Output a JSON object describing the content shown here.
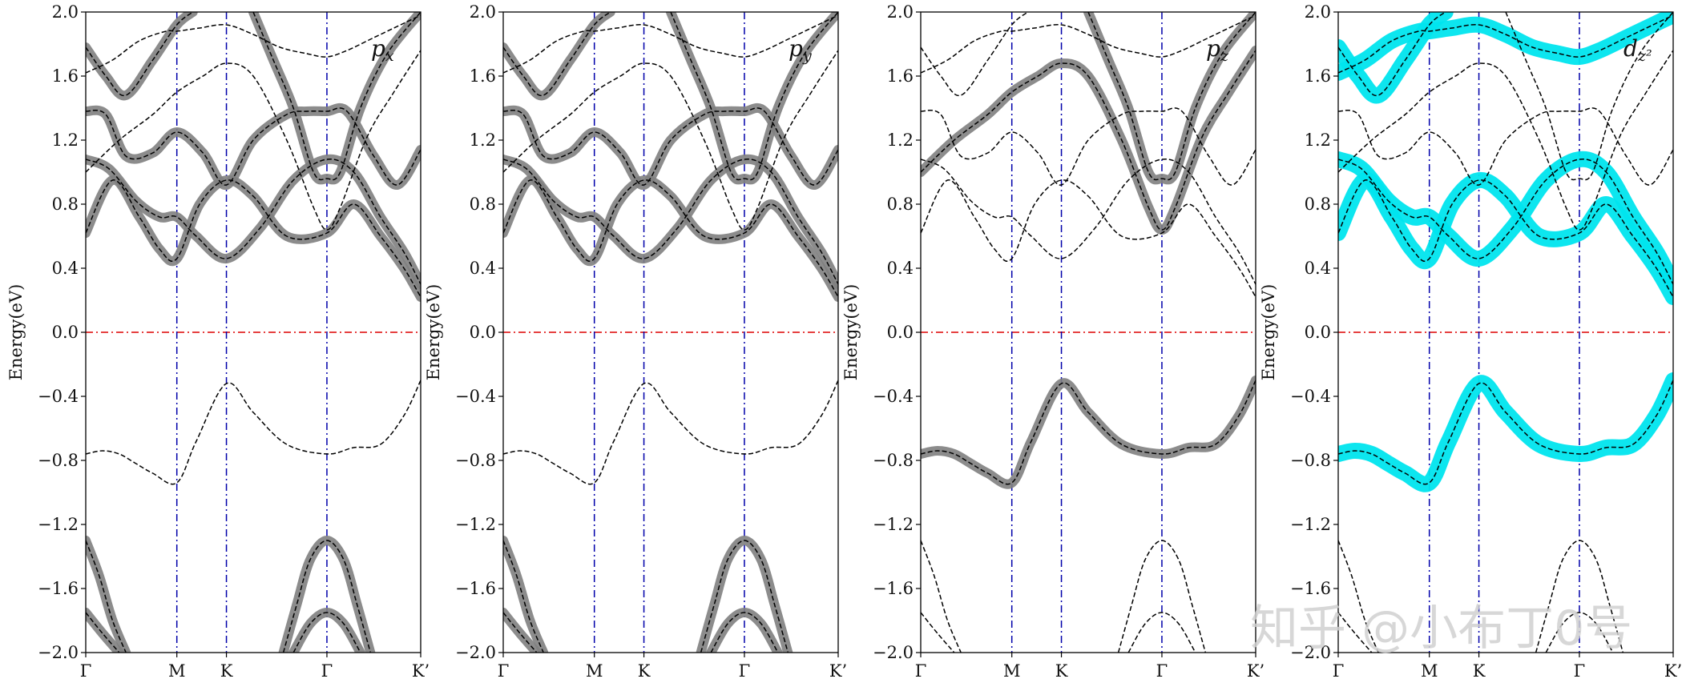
{
  "chart_data": {
    "type": "line",
    "ylabel": "Energy(eV)",
    "ylim": [
      -2.0,
      2.0
    ],
    "yticks": [
      "2.0",
      "1.6",
      "1.2",
      "0.8",
      "0.4",
      "0.0",
      "−0.4",
      "−0.8",
      "−1.2",
      "−1.6",
      "−2.0"
    ],
    "ytick_values": [
      2.0,
      1.6,
      1.2,
      0.8,
      0.4,
      0.0,
      -0.4,
      -0.8,
      -1.2,
      -1.6,
      -2.0
    ],
    "kpath_labels": [
      "Γ",
      "M",
      "K",
      "Γ",
      "K’"
    ],
    "kpath_positions": [
      0.0,
      0.272,
      0.42,
      0.72,
      1.0
    ],
    "fermi_level": 0.0,
    "colors": {
      "band": "#000000",
      "weight_p": "#808080",
      "weight_d": "#00e5ee",
      "fermi": "#dd0000",
      "kline": "#0000aa"
    },
    "bands": [
      {
        "x": [
          0,
          0.05,
          0.1,
          0.15,
          0.2,
          0.272,
          0.33,
          0.42,
          0.5,
          0.6,
          0.72,
          0.8,
          0.88,
          0.95,
          1.0
        ],
        "y": [
          -0.76,
          -0.74,
          -0.76,
          -0.82,
          -0.88,
          -0.94,
          -0.68,
          -0.32,
          -0.5,
          -0.7,
          -0.76,
          -0.72,
          -0.7,
          -0.52,
          -0.3
        ]
      },
      {
        "x": [
          0,
          0.08,
          0.16,
          0.22,
          0.272,
          0.34,
          0.42,
          0.5,
          0.6,
          0.72,
          0.8,
          0.88,
          0.95,
          1.0
        ],
        "y": [
          0.62,
          0.95,
          0.72,
          0.52,
          0.46,
          0.8,
          0.95,
          0.85,
          0.6,
          0.62,
          0.8,
          0.6,
          0.4,
          0.22
        ]
      },
      {
        "x": [
          0,
          0.07,
          0.15,
          0.22,
          0.272,
          0.33,
          0.42,
          0.52,
          0.62,
          0.72,
          0.8,
          0.88,
          0.95,
          1.0
        ],
        "y": [
          1.08,
          1.02,
          0.82,
          0.72,
          0.72,
          0.6,
          0.46,
          0.65,
          0.95,
          1.08,
          1.0,
          0.72,
          0.5,
          0.3
        ]
      },
      {
        "x": [
          0,
          0.06,
          0.12,
          0.2,
          0.272,
          0.35,
          0.42,
          0.5,
          0.6,
          0.66,
          0.72,
          0.78,
          0.86,
          0.93,
          1.0
        ],
        "y": [
          1.38,
          1.36,
          1.1,
          1.12,
          1.25,
          1.12,
          0.92,
          1.2,
          1.36,
          1.38,
          1.38,
          1.38,
          1.1,
          0.92,
          1.14
        ]
      },
      {
        "x": [
          0,
          0.1,
          0.2,
          0.272,
          0.35,
          0.42,
          0.5,
          0.6,
          0.68,
          0.72,
          0.76,
          0.84,
          0.92,
          1.0
        ],
        "y": [
          1.0,
          1.2,
          1.36,
          1.5,
          1.6,
          1.68,
          1.6,
          1.2,
          0.78,
          0.64,
          0.78,
          1.22,
          1.5,
          1.76
        ]
      },
      {
        "x": [
          0,
          0.08,
          0.16,
          0.24,
          0.272,
          0.34,
          0.42,
          0.5,
          0.58,
          0.66,
          0.72,
          0.78,
          0.86,
          0.94,
          1.0
        ],
        "y": [
          1.62,
          1.7,
          1.82,
          1.88,
          1.88,
          1.9,
          1.92,
          1.86,
          1.78,
          1.74,
          1.72,
          1.76,
          1.84,
          1.92,
          1.98
        ]
      },
      {
        "x": [
          0,
          0.06,
          0.12,
          0.2,
          0.272,
          0.32
        ],
        "y": [
          1.78,
          1.6,
          1.48,
          1.7,
          1.92,
          2.0
        ]
      },
      {
        "x": [
          0.5,
          0.56,
          0.62,
          0.68,
          0.72,
          0.76,
          0.82,
          0.9,
          1.0
        ],
        "y": [
          2.0,
          1.7,
          1.4,
          1.0,
          0.96,
          1.0,
          1.4,
          1.74,
          2.0
        ]
      },
      {
        "x": [
          0,
          0.04,
          0.08,
          0.12
        ],
        "y": [
          -1.3,
          -1.52,
          -1.8,
          -2.0
        ]
      },
      {
        "x": [
          0,
          0.05,
          0.1
        ],
        "y": [
          -1.75,
          -1.88,
          -2.0
        ]
      },
      {
        "x": [
          0.59,
          0.63,
          0.67,
          0.72,
          0.77,
          0.81,
          0.85
        ],
        "y": [
          -2.0,
          -1.7,
          -1.42,
          -1.3,
          -1.42,
          -1.7,
          -2.0
        ]
      },
      {
        "x": [
          0.62,
          0.67,
          0.72,
          0.77,
          0.82
        ],
        "y": [
          -2.0,
          -1.82,
          -1.75,
          -1.82,
          -2.0
        ]
      }
    ],
    "panels": [
      {
        "orbital": "p",
        "sub": "x",
        "weight_color": "#808080",
        "weighted_bands": [
          1,
          2,
          3,
          8,
          9,
          10,
          11,
          6,
          7
        ]
      },
      {
        "orbital": "p",
        "sub": "y",
        "weight_color": "#808080",
        "weighted_bands": [
          1,
          2,
          3,
          8,
          9,
          10,
          11,
          6,
          7
        ]
      },
      {
        "orbital": "p",
        "sub": "z",
        "weight_color": "#808080",
        "weighted_bands": [
          0,
          7,
          4
        ]
      },
      {
        "orbital": "d",
        "sub": "z²",
        "weight_color": "#00e5ee",
        "weighted_bands": [
          0,
          1,
          2,
          5,
          6
        ]
      }
    ]
  },
  "watermark": "知乎 @小布丁0号"
}
